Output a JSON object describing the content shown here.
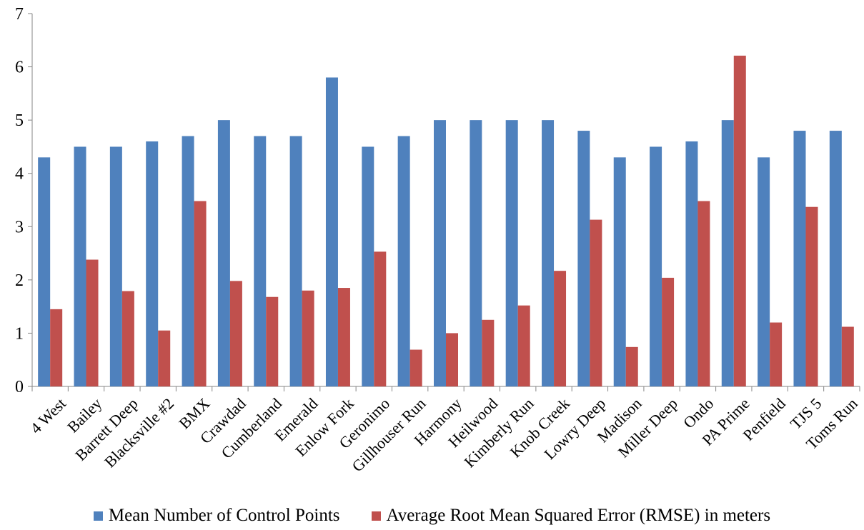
{
  "chart_data": {
    "type": "bar",
    "title": "",
    "xlabel": "",
    "ylabel": "",
    "ylim": [
      0,
      7
    ],
    "yticks": [
      "0",
      "1",
      "2",
      "3",
      "4",
      "5",
      "6",
      "7"
    ],
    "grid": false,
    "legend_position": "bottom",
    "categories": [
      "4 West",
      "Bailey",
      "Barrett Deep",
      "Blacksville #2",
      "BMX",
      "Crawdad",
      "Cumberland",
      "Emerald",
      "Enlow Fork",
      "Geronimo",
      "Gillhouser Run",
      "Harmony",
      "Heilwood",
      "Kimberly Run",
      "Knob Creek",
      "Lowry Deep",
      "Madison",
      "Miller Deep",
      "Ondo",
      "PA Prime",
      "Penfield",
      "TJS 5",
      "Toms Run"
    ],
    "series": [
      {
        "name": "Mean Number of Control Points",
        "color": "#4F81BD",
        "values": [
          4.3,
          4.5,
          4.5,
          4.6,
          4.7,
          5.0,
          4.7,
          4.7,
          5.8,
          4.5,
          4.7,
          5.0,
          5.0,
          5.0,
          5.0,
          4.8,
          4.3,
          4.5,
          4.6,
          5.0,
          4.3,
          4.8,
          4.8
        ]
      },
      {
        "name": "Average Root Mean Squared Error (RMSE) in meters",
        "color": "#C0504D",
        "values": [
          1.45,
          2.38,
          1.79,
          1.05,
          3.48,
          1.98,
          1.68,
          1.8,
          1.85,
          2.53,
          0.69,
          1.0,
          1.25,
          1.52,
          2.17,
          3.13,
          0.74,
          2.04,
          3.48,
          6.21,
          1.2,
          3.37,
          1.12
        ]
      }
    ]
  }
}
